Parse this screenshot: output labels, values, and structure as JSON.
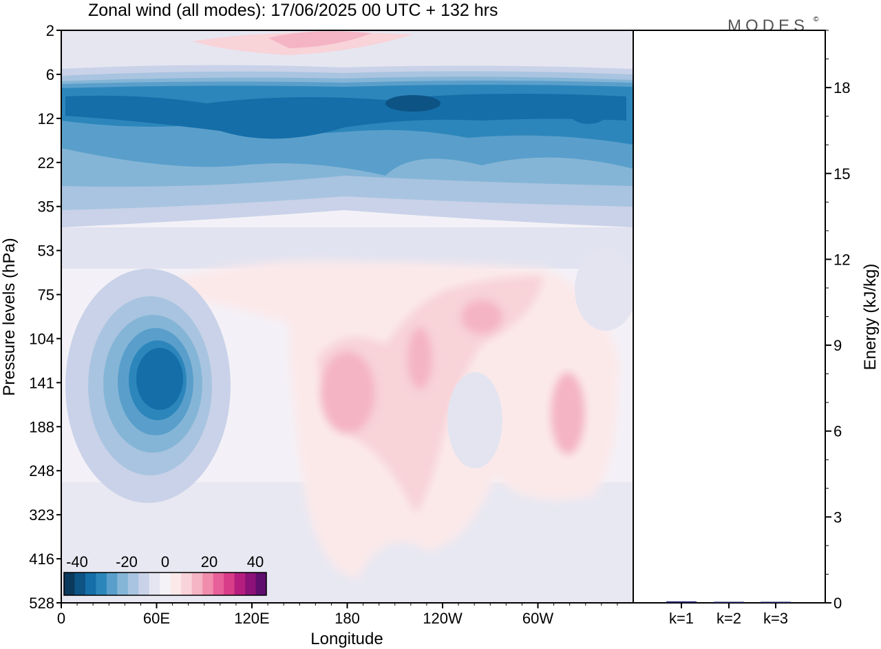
{
  "logo": {
    "text": "MODES",
    "mark": "©"
  },
  "chart_data": [
    {
      "type": "heatmap",
      "title": "Zonal wind (all modes):  17/06/2025  00 UTC  + 132 hrs",
      "xlabel": "Longitude",
      "ylabel": "Pressure levels (hPa)",
      "x_ticks": [
        "0",
        "60E",
        "120E",
        "180",
        "120W",
        "60W"
      ],
      "x_tick_values": [
        0,
        60,
        120,
        180,
        240,
        300
      ],
      "xlim": [
        0,
        360
      ],
      "y_ticks": [
        2,
        6,
        12,
        22,
        35,
        53,
        75,
        104,
        141,
        188,
        248,
        323,
        416,
        528
      ],
      "colorbar": {
        "tick_labels": [
          "-40",
          "-20",
          "0",
          "20",
          "40"
        ],
        "colors": [
          "#0b3a5c",
          "#0d5384",
          "#156ea8",
          "#2d86bb",
          "#5a9fcb",
          "#85b5d6",
          "#a9c4e0",
          "#c9d2e8",
          "#e4e5f0",
          "#f5f2f7",
          "#fbe9ea",
          "#f8d3d8",
          "#f4b4c4",
          "#f08cac",
          "#e8609a",
          "#d83d8a",
          "#b51e7e",
          "#8c1278",
          "#5f0e6e"
        ]
      },
      "features": [
        {
          "name": "stratospheric easterly jet",
          "lon": [
            0,
            360
          ],
          "pressure": [
            8,
            22
          ],
          "value": -35
        },
        {
          "name": "upper westerlies",
          "lon": [
            100,
            200
          ],
          "pressure": [
            2,
            4
          ],
          "value": 15
        },
        {
          "name": "easterly core near 60E",
          "lon": [
            40,
            85
          ],
          "pressure": [
            100,
            230
          ],
          "value": -40
        },
        {
          "name": "westerly region near 180",
          "lon": [
            160,
            300
          ],
          "pressure": [
            80,
            330
          ],
          "value": 12
        },
        {
          "name": "westerly core near 60W",
          "lon": [
            300,
            330
          ],
          "pressure": [
            120,
            250
          ],
          "value": 14
        }
      ]
    },
    {
      "type": "bar",
      "categories": [
        "k=1",
        "k=2",
        "k=3"
      ],
      "values": [
        0.05,
        0.03,
        0.01
      ],
      "ylabel": "Energy (kJ/kg)",
      "y_ticks": [
        0,
        3,
        6,
        9,
        12,
        15,
        18
      ],
      "ylim": [
        0,
        20
      ]
    }
  ]
}
